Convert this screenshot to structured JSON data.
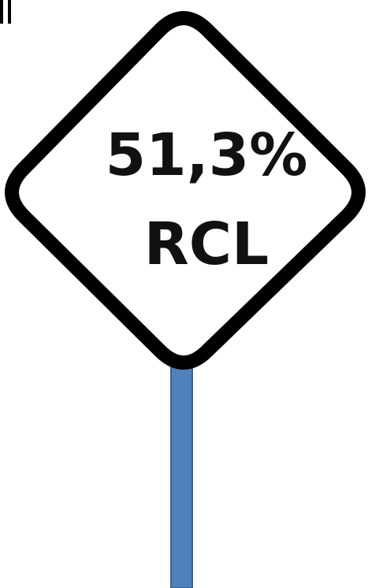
{
  "sign": {
    "value": "51,3%",
    "label": "RCL"
  }
}
